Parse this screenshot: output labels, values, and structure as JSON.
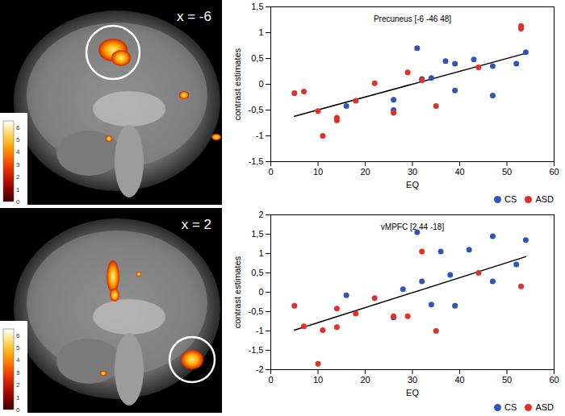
{
  "chart_data": [
    {
      "type": "scatter",
      "title": "Precuneus [-6 -46 48]",
      "x_label": "EQ",
      "y_label": "contrast estimates",
      "xlim": [
        0,
        60
      ],
      "xticks": [
        0,
        10,
        20,
        30,
        40,
        50,
        60
      ],
      "ylim": [
        -1.5,
        1.5
      ],
      "yticks": [
        {
          "value": -1.5,
          "label": "-1,5"
        },
        -1,
        {
          "value": -0.5,
          "label": "-0,5"
        },
        0,
        {
          "value": 0.5,
          "label": "0,5"
        },
        1,
        {
          "value": 1.5,
          "label": "1,5"
        }
      ],
      "legend": "bottom-right",
      "series": [
        {
          "name": "CS",
          "color": "#2f55b5",
          "marker": "circle",
          "x": [
            16,
            26,
            26,
            31,
            32,
            34,
            37,
            39,
            39,
            43,
            47,
            47,
            52,
            54
          ],
          "values": [
            -0.42,
            -0.5,
            -0.3,
            0.7,
            0.1,
            0.12,
            0.45,
            0.4,
            -0.12,
            0.48,
            -0.22,
            0.35,
            0.4,
            0.62
          ]
        },
        {
          "name": "ASD",
          "color": "#e0302a",
          "marker": "circle",
          "x": [
            5,
            7,
            10,
            11,
            14,
            14,
            18,
            22,
            26,
            29,
            32,
            35,
            44,
            53,
            53
          ],
          "values": [
            -0.17,
            -0.14,
            -0.52,
            -1.0,
            -0.7,
            -0.65,
            -0.32,
            0.02,
            -0.55,
            0.23,
            0.08,
            -0.42,
            0.33,
            1.08,
            1.13
          ]
        }
      ],
      "regression_line": {
        "x": [
          5,
          54
        ],
        "values": [
          -0.62,
          0.6
        ],
        "color": "#000000"
      }
    },
    {
      "type": "scatter",
      "title": "vMPFC [2 44 -18]",
      "x_label": "EQ",
      "y_label": "contrast estimates",
      "xlim": [
        0,
        60
      ],
      "xticks": [
        0,
        10,
        20,
        30,
        40,
        50,
        60
      ],
      "ylim": [
        -2,
        2
      ],
      "yticks": [
        -2,
        {
          "value": -1.5,
          "label": "-1,5"
        },
        -1,
        {
          "value": -0.5,
          "label": "-0,5"
        },
        0,
        {
          "value": 0.5,
          "label": "0,5"
        },
        1,
        {
          "value": 1.5,
          "label": "1,5"
        },
        2
      ],
      "legend": "bottom-right",
      "series": [
        {
          "name": "CS",
          "color": "#2f55b5",
          "marker": "circle",
          "x": [
            16,
            26,
            28,
            31,
            32,
            34,
            36,
            38,
            39,
            42,
            47,
            47,
            52,
            54
          ],
          "values": [
            -0.08,
            -0.65,
            0.08,
            1.55,
            0.28,
            -0.32,
            1.05,
            0.45,
            -0.35,
            1.1,
            1.45,
            0.28,
            0.72,
            1.35
          ]
        },
        {
          "name": "ASD",
          "color": "#e0302a",
          "marker": "circle",
          "x": [
            5,
            7,
            10,
            11,
            14,
            14,
            18,
            22,
            26,
            29,
            32,
            35,
            44,
            53
          ],
          "values": [
            -0.35,
            -0.88,
            -1.85,
            -0.98,
            -0.42,
            -0.9,
            -0.55,
            -0.15,
            -0.62,
            -0.62,
            1.05,
            -1.0,
            0.5,
            0.15
          ]
        }
      ],
      "regression_line": {
        "x": [
          5,
          54
        ],
        "values": [
          -0.98,
          0.92
        ],
        "color": "#000000"
      }
    }
  ],
  "brain_images": [
    {
      "label": "x = -6",
      "colorbar": {
        "range": [
          0,
          6.5
        ],
        "ticks": [
          0,
          1,
          2,
          3,
          4,
          5,
          6
        ]
      }
    },
    {
      "label": "x = 2",
      "colorbar": {
        "range": [
          0,
          6.5
        ],
        "ticks": [
          0,
          1,
          2,
          3,
          4,
          5,
          6
        ]
      }
    }
  ]
}
